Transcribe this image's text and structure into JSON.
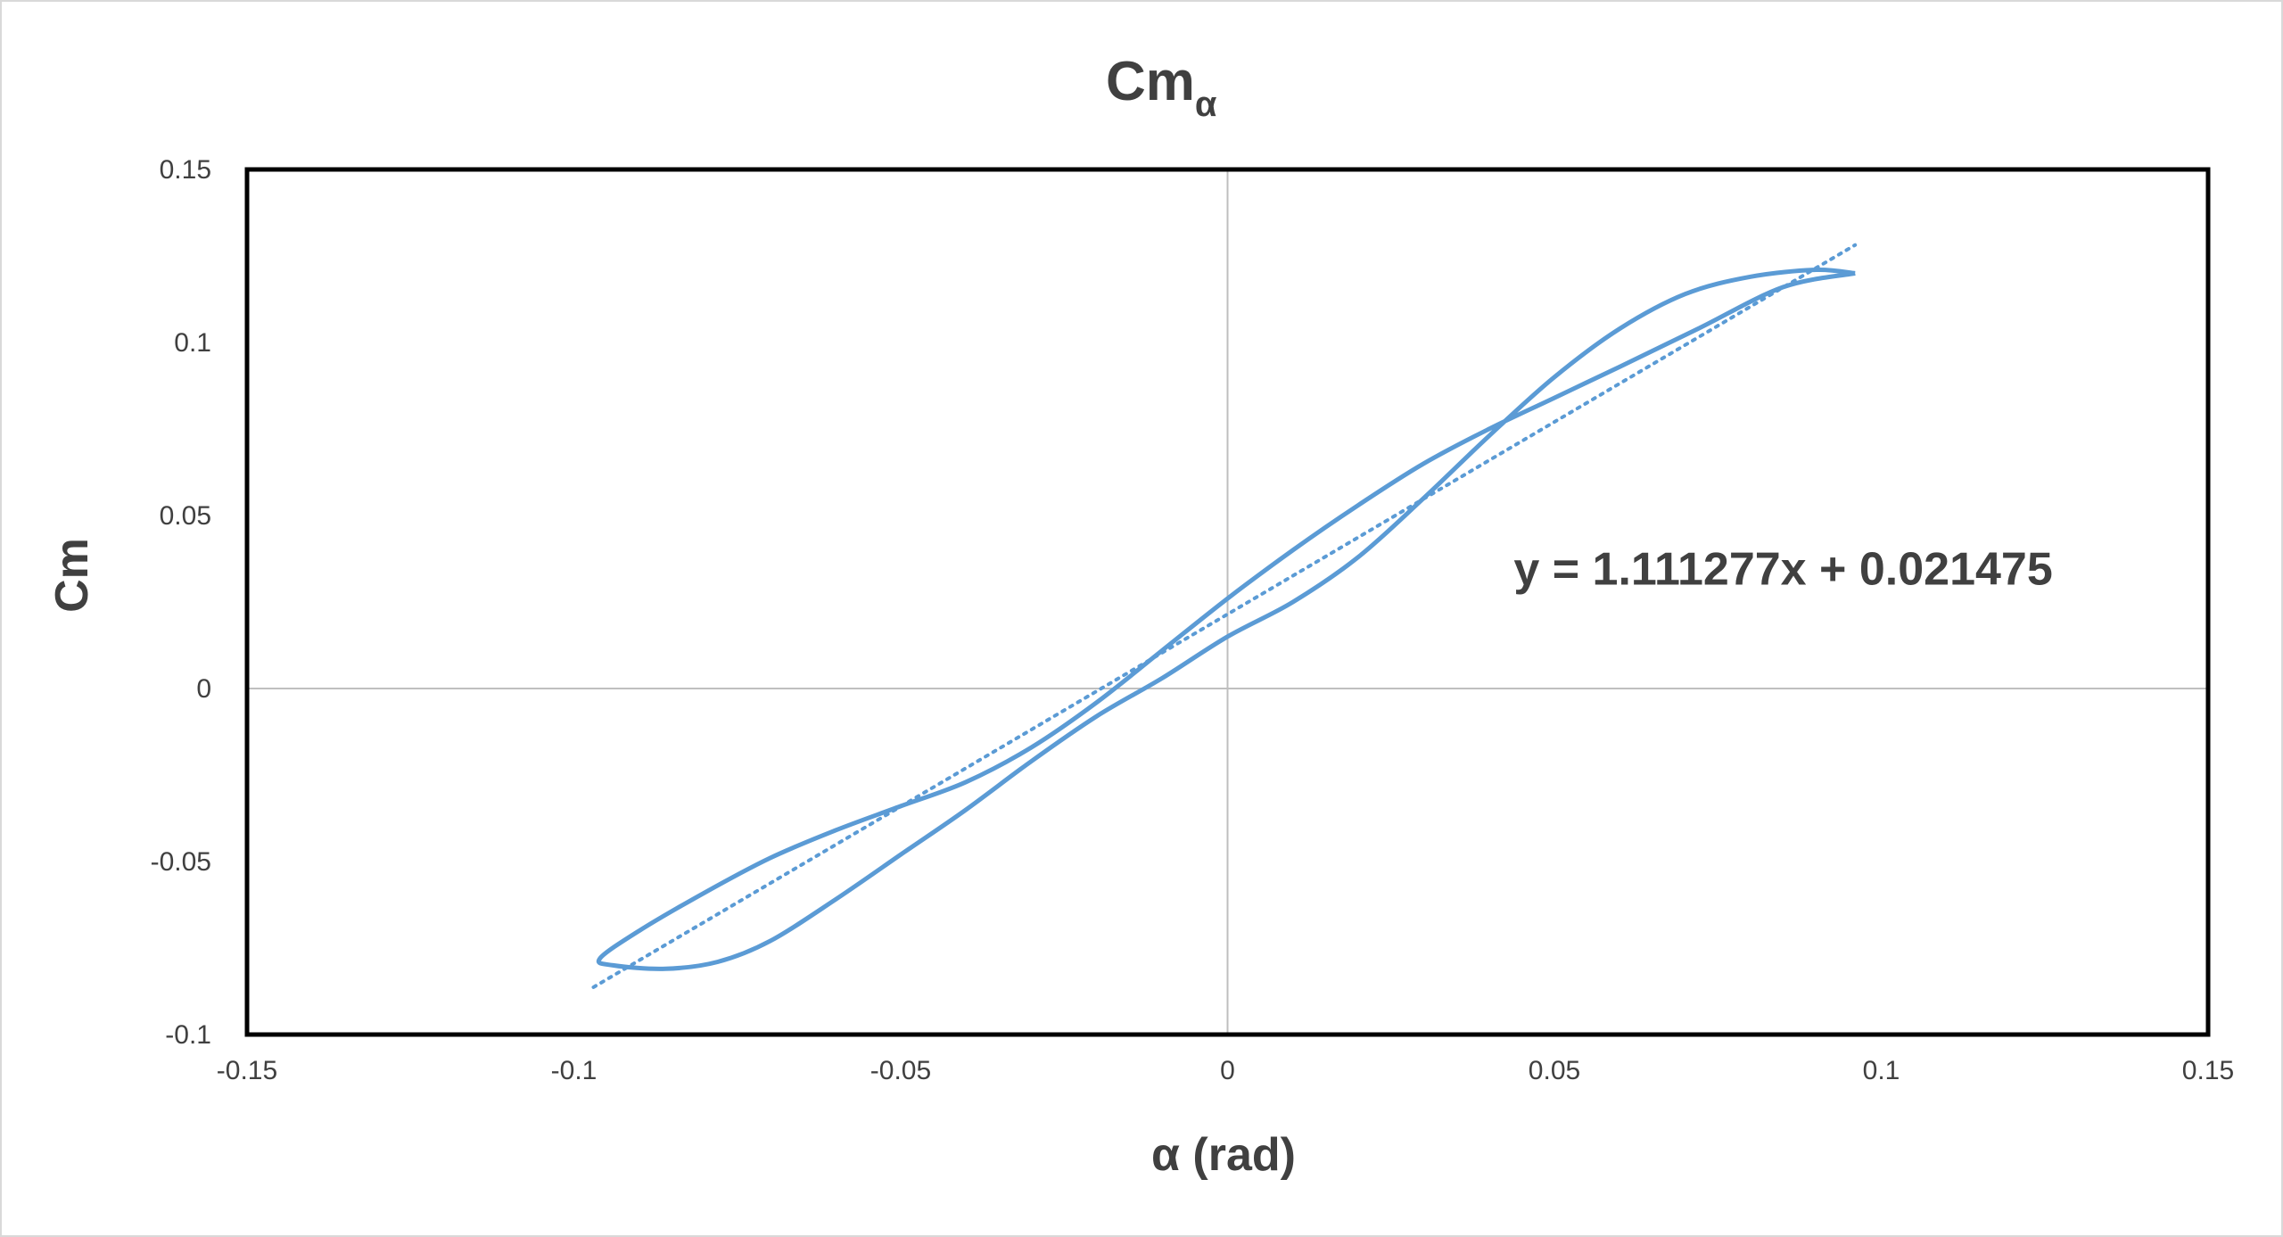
{
  "chart_data": {
    "type": "scatter",
    "title": "Cm",
    "title_subscript": "α",
    "xlabel": "α (rad)",
    "ylabel": "Cm",
    "xlim": [
      -0.15,
      0.15
    ],
    "ylim": [
      -0.1,
      0.15
    ],
    "xticks": [
      "-0.15",
      "-0.1",
      "-0.05",
      "0",
      "0.05",
      "0.1",
      "0.15"
    ],
    "yticks": [
      "-0.1",
      "-0.05",
      "0",
      "0.05",
      "0.1",
      "0.15"
    ],
    "grid": false,
    "zero_lines": true,
    "legend": "none",
    "series_color": "#5b9bd5",
    "series": [
      {
        "style": "smooth-line",
        "points": [
          {
            "x": 0.096,
            "y": 0.12
          },
          {
            "x": 0.085,
            "y": 0.116
          },
          {
            "x": 0.072,
            "y": 0.104
          },
          {
            "x": 0.06,
            "y": 0.093
          },
          {
            "x": 0.05,
            "y": 0.084
          },
          {
            "x": 0.04,
            "y": 0.075
          },
          {
            "x": 0.03,
            "y": 0.065
          },
          {
            "x": 0.02,
            "y": 0.053
          },
          {
            "x": 0.01,
            "y": 0.04
          },
          {
            "x": 0.0,
            "y": 0.026
          },
          {
            "x": -0.01,
            "y": 0.011
          },
          {
            "x": -0.02,
            "y": -0.004
          },
          {
            "x": -0.03,
            "y": -0.017
          },
          {
            "x": -0.04,
            "y": -0.027
          },
          {
            "x": -0.05,
            "y": -0.034
          },
          {
            "x": -0.06,
            "y": -0.041
          },
          {
            "x": -0.07,
            "y": -0.049
          },
          {
            "x": -0.08,
            "y": -0.059
          },
          {
            "x": -0.09,
            "y": -0.07
          },
          {
            "x": -0.096,
            "y": -0.078
          },
          {
            "x": -0.094,
            "y": -0.08
          },
          {
            "x": -0.086,
            "y": -0.081
          },
          {
            "x": -0.078,
            "y": -0.079
          },
          {
            "x": -0.07,
            "y": -0.073
          },
          {
            "x": -0.06,
            "y": -0.061
          },
          {
            "x": -0.05,
            "y": -0.048
          },
          {
            "x": -0.04,
            "y": -0.035
          },
          {
            "x": -0.03,
            "y": -0.021
          },
          {
            "x": -0.02,
            "y": -0.008
          },
          {
            "x": -0.01,
            "y": 0.003
          },
          {
            "x": 0.0,
            "y": 0.015
          },
          {
            "x": 0.01,
            "y": 0.025
          },
          {
            "x": 0.02,
            "y": 0.038
          },
          {
            "x": 0.03,
            "y": 0.055
          },
          {
            "x": 0.04,
            "y": 0.073
          },
          {
            "x": 0.05,
            "y": 0.09
          },
          {
            "x": 0.06,
            "y": 0.104
          },
          {
            "x": 0.07,
            "y": 0.114
          },
          {
            "x": 0.08,
            "y": 0.119
          },
          {
            "x": 0.09,
            "y": 0.121
          },
          {
            "x": 0.096,
            "y": 0.12
          }
        ]
      },
      {
        "style": "dotted-trendline",
        "slope": 1.111277,
        "intercept": 0.021475,
        "x_range": [
          -0.097,
          0.096
        ]
      }
    ],
    "annotations": [
      {
        "text": "y = 1.111277x + 0.021475",
        "x": 0.085,
        "y": 0.03
      }
    ]
  }
}
